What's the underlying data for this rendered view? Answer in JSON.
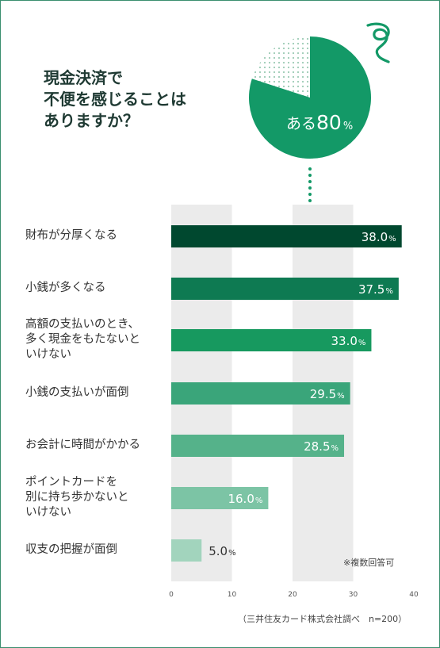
{
  "title_lines": [
    "現金決済で",
    "不便を感じることは",
    "ありますか？"
  ],
  "pie": {
    "label": "ある",
    "value": "80",
    "unit": "%",
    "fraction": 0.8,
    "main_color": "#139967",
    "rest_color": "#dcebe3"
  },
  "categories": [
    {
      "lines": [
        "財布が分厚くなる"
      ]
    },
    {
      "lines": [
        "小銭が多くなる"
      ]
    },
    {
      "lines": [
        "高額の支払いのとき、",
        "多く現金をもたないと",
        "いけない"
      ]
    },
    {
      "lines": [
        "小銭の支払いが面倒"
      ]
    },
    {
      "lines": [
        "お会計に時間がかかる"
      ]
    },
    {
      "lines": [
        "ポイントカードを",
        "別に持ち歩かないと",
        "いけない"
      ]
    },
    {
      "lines": [
        "収支の把握が面倒"
      ]
    }
  ],
  "chart_data": {
    "type": "bar",
    "orientation": "horizontal",
    "categories": [
      "財布が分厚くなる",
      "小銭が多くなる",
      "高額の支払いのとき、多く現金をもたないといけない",
      "小銭の支払いが面倒",
      "お会計に時間がかかる",
      "ポイントカードを別に持ち歩かないといけない",
      "収支の把握が面倒"
    ],
    "values": [
      38.0,
      37.5,
      33.0,
      29.5,
      28.5,
      16.0,
      5.0
    ],
    "value_labels": [
      "38.0",
      "37.5",
      "33.0",
      "29.5",
      "28.5",
      "16.0",
      "5.0"
    ],
    "value_unit": "%",
    "xlim": [
      0,
      40
    ],
    "xticks": [
      0,
      10,
      20,
      30,
      40
    ],
    "bar_colors": [
      "#00482f",
      "#0e7a52",
      "#17995f",
      "#3aa57a",
      "#55b28a",
      "#7cc4a5",
      "#a2d4bd"
    ],
    "band_color": "#ebebeb"
  },
  "note": "※複数回答可",
  "source": "（三井住友カード株式会社調べ　n=200）"
}
